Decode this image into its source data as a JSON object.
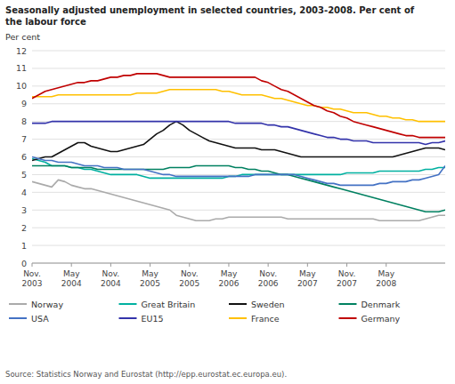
{
  "chart_data": {
    "type": "line",
    "title": "Seasonally adjusted unemployment in selected countries, 2003-2008. Per cent of\nthe labour force",
    "y_label": "Per cent",
    "annotations": [
      "Source: Statistics Norway and Eurostat (http://epp.eurostat.ec.europa.eu)."
    ],
    "categories": [
      "Nov.\n2003",
      null,
      null,
      null,
      null,
      null,
      "May\n2004",
      null,
      null,
      null,
      null,
      null,
      "Nov.\n2004",
      null,
      null,
      null,
      null,
      null,
      "May\n2005",
      null,
      null,
      null,
      null,
      null,
      "Nov.\n2005",
      null,
      null,
      null,
      null,
      null,
      "May\n2006",
      null,
      null,
      null,
      null,
      null,
      "Nov.\n2006",
      null,
      null,
      null,
      null,
      null,
      "May\n2007",
      null,
      null,
      null,
      null,
      null,
      "Nov.\n2007",
      null,
      null,
      null,
      null,
      null,
      "May\n2008",
      null,
      null,
      null,
      null,
      null,
      null,
      null,
      null,
      null
    ],
    "ylim": [
      0,
      12
    ],
    "yticks": [
      0,
      1,
      2,
      3,
      4,
      5,
      6,
      7,
      8,
      9,
      10,
      11,
      12
    ],
    "grid": true,
    "legend": "bottom",
    "series": [
      {
        "name": "Norway",
        "color": "#aaaaaa",
        "values": [
          4.6,
          4.5,
          4.4,
          4.3,
          4.7,
          4.6,
          4.4,
          4.3,
          4.2,
          4.2,
          4.1,
          4.0,
          3.9,
          3.8,
          3.7,
          3.6,
          3.5,
          3.4,
          3.3,
          3.2,
          3.1,
          3.0,
          2.7,
          2.6,
          2.5,
          2.4,
          2.4,
          2.4,
          2.5,
          2.5,
          2.6,
          2.6,
          2.6,
          2.6,
          2.6,
          2.6,
          2.6,
          2.6,
          2.6,
          2.5,
          2.5,
          2.5,
          2.5,
          2.5,
          2.5,
          2.5,
          2.5,
          2.5,
          2.5,
          2.5,
          2.5,
          2.5,
          2.5,
          2.4,
          2.4,
          2.4,
          2.4,
          2.4,
          2.4,
          2.4,
          2.5,
          2.6,
          2.7,
          2.7
        ]
      },
      {
        "name": "Great Britain",
        "color": "#00b0a0",
        "values": [
          5.9,
          5.8,
          5.7,
          5.5,
          5.5,
          5.5,
          5.4,
          5.4,
          5.3,
          5.3,
          5.2,
          5.1,
          5.0,
          5.0,
          5.0,
          5.0,
          5.0,
          4.9,
          4.8,
          4.8,
          4.8,
          4.8,
          4.8,
          4.8,
          4.8,
          4.8,
          4.8,
          4.8,
          4.8,
          4.8,
          4.9,
          4.9,
          5.0,
          5.0,
          5.0,
          5.0,
          5.0,
          5.0,
          5.0,
          5.0,
          5.0,
          5.0,
          5.0,
          5.0,
          5.0,
          5.0,
          5.0,
          5.0,
          5.1,
          5.1,
          5.1,
          5.1,
          5.1,
          5.2,
          5.2,
          5.2,
          5.2,
          5.2,
          5.2,
          5.2,
          5.3,
          5.3,
          5.4,
          5.4
        ]
      },
      {
        "name": "Sweden",
        "color": "#111111",
        "values": [
          5.8,
          5.9,
          6.0,
          6.0,
          6.2,
          6.4,
          6.6,
          6.8,
          6.8,
          6.6,
          6.5,
          6.4,
          6.3,
          6.3,
          6.4,
          6.5,
          6.6,
          6.7,
          7.0,
          7.3,
          7.5,
          7.8,
          8.0,
          7.8,
          7.5,
          7.3,
          7.1,
          6.9,
          6.8,
          6.7,
          6.6,
          6.5,
          6.5,
          6.5,
          6.5,
          6.4,
          6.4,
          6.4,
          6.3,
          6.2,
          6.1,
          6.0,
          6.0,
          6.0,
          6.0,
          6.0,
          6.0,
          6.0,
          6.0,
          6.0,
          6.0,
          6.0,
          6.0,
          6.0,
          6.0,
          6.0,
          6.1,
          6.2,
          6.3,
          6.4,
          6.5,
          6.5,
          6.5,
          6.4
        ]
      },
      {
        "name": "Denmark",
        "color": "#008060",
        "values": [
          5.5,
          5.5,
          5.5,
          5.5,
          5.5,
          5.5,
          5.4,
          5.4,
          5.4,
          5.4,
          5.3,
          5.3,
          5.3,
          5.3,
          5.3,
          5.3,
          5.3,
          5.3,
          5.3,
          5.3,
          5.3,
          5.4,
          5.4,
          5.4,
          5.4,
          5.5,
          5.5,
          5.5,
          5.5,
          5.5,
          5.5,
          5.4,
          5.4,
          5.3,
          5.3,
          5.2,
          5.2,
          5.1,
          5.0,
          5.0,
          4.9,
          4.8,
          4.7,
          4.6,
          4.5,
          4.4,
          4.3,
          4.2,
          4.1,
          4.0,
          3.9,
          3.8,
          3.7,
          3.6,
          3.5,
          3.4,
          3.3,
          3.2,
          3.1,
          3.0,
          2.9,
          2.9,
          2.9,
          3.0
        ]
      },
      {
        "name": "USA",
        "color": "#4472c4",
        "values": [
          6.0,
          5.9,
          5.8,
          5.8,
          5.7,
          5.7,
          5.7,
          5.6,
          5.5,
          5.5,
          5.5,
          5.4,
          5.4,
          5.4,
          5.3,
          5.3,
          5.3,
          5.3,
          5.2,
          5.1,
          5.0,
          5.0,
          4.9,
          4.9,
          4.9,
          4.9,
          4.9,
          4.9,
          4.9,
          4.9,
          4.9,
          4.9,
          4.9,
          4.9,
          5.0,
          5.0,
          5.0,
          5.0,
          5.0,
          5.0,
          5.0,
          4.9,
          4.8,
          4.7,
          4.6,
          4.5,
          4.5,
          4.4,
          4.4,
          4.4,
          4.4,
          4.4,
          4.4,
          4.5,
          4.5,
          4.6,
          4.6,
          4.6,
          4.7,
          4.7,
          4.8,
          4.9,
          5.0,
          5.5
        ]
      },
      {
        "name": "EU15",
        "color": "#3333aa",
        "values": [
          7.9,
          7.9,
          7.9,
          8.0,
          8.0,
          8.0,
          8.0,
          8.0,
          8.0,
          8.0,
          8.0,
          8.0,
          8.0,
          8.0,
          8.0,
          8.0,
          8.0,
          8.0,
          8.0,
          8.0,
          8.0,
          8.0,
          8.0,
          8.0,
          8.0,
          8.0,
          8.0,
          8.0,
          8.0,
          8.0,
          8.0,
          7.9,
          7.9,
          7.9,
          7.9,
          7.9,
          7.8,
          7.8,
          7.7,
          7.7,
          7.6,
          7.5,
          7.4,
          7.3,
          7.2,
          7.1,
          7.1,
          7.0,
          7.0,
          6.9,
          6.9,
          6.9,
          6.8,
          6.8,
          6.8,
          6.8,
          6.8,
          6.8,
          6.8,
          6.8,
          6.7,
          6.8,
          6.8,
          6.9
        ]
      },
      {
        "name": "France",
        "color": "#ffc000",
        "values": [
          9.4,
          9.4,
          9.4,
          9.4,
          9.5,
          9.5,
          9.5,
          9.5,
          9.5,
          9.5,
          9.5,
          9.5,
          9.5,
          9.5,
          9.5,
          9.5,
          9.6,
          9.6,
          9.6,
          9.6,
          9.7,
          9.8,
          9.8,
          9.8,
          9.8,
          9.8,
          9.8,
          9.8,
          9.8,
          9.7,
          9.7,
          9.6,
          9.5,
          9.5,
          9.5,
          9.5,
          9.4,
          9.3,
          9.3,
          9.2,
          9.1,
          9.0,
          8.9,
          8.9,
          8.8,
          8.8,
          8.7,
          8.7,
          8.6,
          8.5,
          8.5,
          8.5,
          8.4,
          8.3,
          8.3,
          8.2,
          8.2,
          8.1,
          8.1,
          8.0,
          8.0,
          8.0,
          8.0,
          8.0
        ]
      },
      {
        "name": "Germany",
        "color": "#c00000",
        "values": [
          9.3,
          9.5,
          9.7,
          9.8,
          9.9,
          10.0,
          10.1,
          10.2,
          10.2,
          10.3,
          10.3,
          10.4,
          10.5,
          10.5,
          10.6,
          10.6,
          10.7,
          10.7,
          10.7,
          10.7,
          10.6,
          10.5,
          10.5,
          10.5,
          10.5,
          10.5,
          10.5,
          10.5,
          10.5,
          10.5,
          10.5,
          10.5,
          10.5,
          10.5,
          10.5,
          10.3,
          10.2,
          10.0,
          9.8,
          9.7,
          9.5,
          9.3,
          9.1,
          8.9,
          8.8,
          8.6,
          8.5,
          8.3,
          8.2,
          8.0,
          7.9,
          7.8,
          7.7,
          7.6,
          7.5,
          7.4,
          7.3,
          7.2,
          7.2,
          7.1,
          7.1,
          7.1,
          7.1,
          7.1
        ]
      }
    ]
  }
}
